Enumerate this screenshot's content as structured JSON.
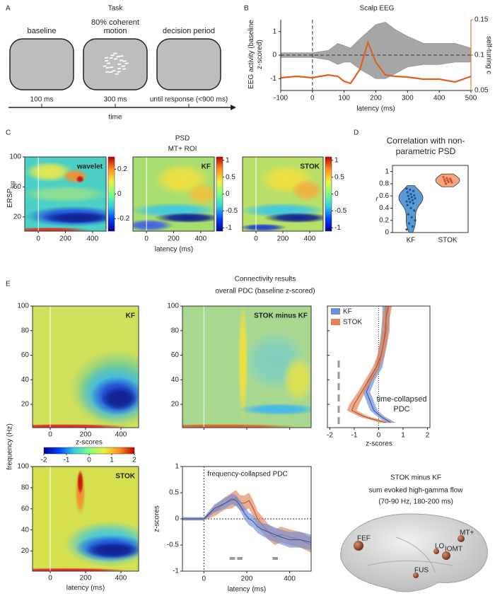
{
  "panel_a": {
    "letter": "A",
    "title": "Task",
    "stages": [
      {
        "label": "baseline",
        "duration": "100 ms"
      },
      {
        "label": "80% coherent motion",
        "duration": "300 ms"
      },
      {
        "label": "decision period",
        "duration": "until response (<900 ms)"
      }
    ],
    "axis_label": "time"
  },
  "panel_b": {
    "letter": "B",
    "type": "line",
    "title": "Scalp EEG",
    "xlabel": "latency (ms)",
    "ylabel": "EEG activity (baseline z-scored)",
    "y2label": "self-tuning c",
    "xlim": [
      -100,
      500
    ],
    "xticks": [
      -100,
      0,
      100,
      200,
      300,
      400,
      500
    ],
    "ylim": [
      -1.5,
      1.5
    ],
    "yticks": [
      -1,
      0,
      1
    ],
    "y2lim": [
      0.05,
      0.15
    ],
    "y2ticks": [
      0.05,
      0.1,
      0.15
    ],
    "x": [
      -100,
      -50,
      0,
      50,
      80,
      100,
      120,
      150,
      175,
      200,
      230,
      260,
      300,
      350,
      400,
      450,
      500
    ],
    "eeg_upper": [
      0.1,
      0.1,
      0.1,
      0.2,
      0.5,
      0.4,
      0.3,
      0.7,
      1.0,
      1.3,
      1.4,
      1.1,
      0.8,
      0.5,
      0.5,
      0.5,
      0.3
    ],
    "eeg_lower": [
      -0.1,
      -0.1,
      -0.1,
      -0.2,
      -0.4,
      -0.3,
      -0.3,
      -0.6,
      -0.8,
      -1.0,
      -1.0,
      -0.8,
      -0.5,
      -0.4,
      -0.4,
      -0.3,
      -0.3
    ],
    "series": [
      {
        "color": "#e0601e",
        "axis": "y2",
        "values": [
          0.068,
          0.07,
          0.068,
          0.072,
          0.07,
          0.063,
          0.06,
          0.08,
          0.118,
          0.09,
          0.072,
          0.07,
          0.069,
          0.066,
          0.066,
          0.062,
          0.07
        ]
      }
    ]
  },
  "panel_c": {
    "letter": "C",
    "title": "PSD",
    "subtitle": "MT+ ROI",
    "ylabel": "ERSP",
    "ylabel_subscript": "log",
    "xlabel": "latency (ms)",
    "xlim": [
      -100,
      500
    ],
    "xticks": [
      0,
      200,
      400
    ],
    "ylim": [
      1,
      100
    ],
    "yticks": [
      20,
      60,
      100
    ],
    "maps": [
      {
        "label": "wavelet",
        "clim": [
          -0.3,
          0.3
        ],
        "cticks": [
          -0.2,
          0,
          0.2
        ]
      },
      {
        "label": "KF",
        "clim": [
          -1.1,
          1.1
        ],
        "cticks": [
          -1,
          -0.5,
          0,
          0.5,
          1
        ]
      },
      {
        "label": "STOK",
        "clim": [
          -1.1,
          1.1
        ],
        "cticks": [
          -1,
          -0.5,
          0,
          0.5,
          1
        ]
      }
    ]
  },
  "panel_d": {
    "letter": "D",
    "type": "violin",
    "title": "Correlation with non-parametric PSD",
    "ylabel": "r",
    "ylim": [
      0,
      1.1
    ],
    "yticks": [
      0,
      0.2,
      0.4,
      0.6,
      0.8,
      1
    ],
    "categories": [
      "KF",
      "STOK"
    ],
    "colors": [
      "#5b9bd5",
      "#f4a582"
    ],
    "point_colors": [
      "#1f4f8f",
      "#d0502a"
    ],
    "values": [
      [
        0.72,
        0.7,
        0.68,
        0.66,
        0.63,
        0.61,
        0.6,
        0.58,
        0.56,
        0.55,
        0.53,
        0.51,
        0.5,
        0.48,
        0.45,
        0.4,
        0.36,
        0.3,
        0.25,
        0.2,
        0.15,
        0.1,
        0.05
      ],
      [
        0.91,
        0.89,
        0.88,
        0.87,
        0.86,
        0.85,
        0.84,
        0.83,
        0.82,
        0.8
      ]
    ]
  },
  "panel_e": {
    "letter": "E",
    "title": "Connectivity results",
    "subtitle": "overall PDC (baseline z-scored)",
    "heatmaps": {
      "ylabel": "frequency (Hz)",
      "xlabel": "latency (ms)",
      "xlim": [
        -100,
        500
      ],
      "xticks": [
        0,
        200,
        400
      ],
      "ylim": [
        1,
        100
      ],
      "yticks": [
        20,
        40,
        60,
        80,
        100
      ],
      "maps": [
        {
          "label": "KF"
        },
        {
          "label": "STOK minus KF"
        },
        {
          "label": "STOK"
        }
      ],
      "colorbar": {
        "label": "z-scores",
        "clim": [
          -2,
          2
        ],
        "ticks": [
          -2,
          -1,
          0,
          1,
          2
        ]
      }
    },
    "profile": {
      "type": "line",
      "xlabel": "z-scores",
      "annotation": "time-collapsed PDC",
      "xlim": [
        -2.1,
        2.1
      ],
      "xticks": [
        -2,
        -1,
        0,
        1,
        2
      ],
      "ylim": [
        1,
        100
      ],
      "yticks": [
        20,
        40,
        60,
        80,
        100
      ],
      "y": [
        5,
        10,
        15,
        20,
        30,
        40,
        50,
        60,
        70,
        80,
        90,
        100
      ],
      "series": [
        {
          "name": "KF",
          "color": "#6f8fd8",
          "values": [
            0.5,
            0.1,
            -0.2,
            -0.3,
            -0.5,
            -0.3,
            0,
            0.1,
            0.2,
            0.25,
            0.3,
            0.3
          ],
          "errors": [
            0.2,
            0.15,
            0.15,
            0.15,
            0.15,
            0.15,
            0.15,
            0.15,
            0.15,
            0.15,
            0.15,
            0.15
          ]
        },
        {
          "name": "STOK",
          "color": "#e0845a",
          "values": [
            0.3,
            -0.6,
            -1.1,
            -1.0,
            -0.7,
            -0.4,
            -0.1,
            0.1,
            0.2,
            0.3,
            0.3,
            0.4
          ],
          "errors": [
            0.25,
            0.2,
            0.2,
            0.2,
            0.15,
            0.15,
            0.15,
            0.15,
            0.15,
            0.15,
            0.15,
            0.15
          ]
        }
      ]
    },
    "timecourse": {
      "type": "line",
      "annotation": "frequency-collapsed PDC",
      "ylabel": "z-scores",
      "xlabel": "latency (ms)",
      "xlim": [
        -100,
        500
      ],
      "xticks": [
        0,
        200,
        400
      ],
      "ylim": [
        -1,
        1
      ],
      "yticks": [
        -1,
        -0.5,
        0,
        0.5,
        1
      ],
      "x": [
        -100,
        -50,
        0,
        50,
        100,
        130,
        150,
        170,
        190,
        210,
        230,
        250,
        270,
        300,
        330,
        360,
        400,
        450,
        500
      ],
      "series": [
        {
          "name": "KF",
          "color": "#6f8fd8",
          "values": [
            0,
            0,
            0,
            0.2,
            0.3,
            0.38,
            0.35,
            0.25,
            0.1,
            0,
            -0.05,
            -0.15,
            -0.2,
            -0.25,
            -0.3,
            -0.35,
            -0.4,
            -0.4,
            -0.45
          ],
          "errors": [
            0.03,
            0.03,
            0.03,
            0.08,
            0.1,
            0.1,
            0.1,
            0.1,
            0.12,
            0.12,
            0.12,
            0.12,
            0.12,
            0.14,
            0.14,
            0.14,
            0.15,
            0.15,
            0.15
          ]
        },
        {
          "name": "STOK",
          "color": "#e0845a",
          "values": [
            0,
            0,
            0,
            0.15,
            0.3,
            0.35,
            0.4,
            0.3,
            0.3,
            0.35,
            0.2,
            0,
            -0.1,
            -0.25,
            -0.35,
            -0.3,
            -0.35,
            -0.4,
            -0.5
          ],
          "errors": [
            0.03,
            0.03,
            0.03,
            0.1,
            0.12,
            0.15,
            0.15,
            0.15,
            0.15,
            0.15,
            0.15,
            0.15,
            0.15,
            0.15,
            0.15,
            0.15,
            0.15,
            0.15,
            0.15
          ]
        }
      ],
      "significant_windows": [
        [
          120,
          145
        ],
        [
          155,
          180
        ],
        [
          320,
          345
        ]
      ]
    },
    "brain": {
      "title": "STOK minus KF",
      "subtitle": "sum evoked high-gamma flow",
      "window": "(70-90 Hz, 180-200 ms)",
      "nodes": [
        "FEF",
        "MT+",
        "LO",
        "IOMT",
        "FUS"
      ]
    }
  }
}
